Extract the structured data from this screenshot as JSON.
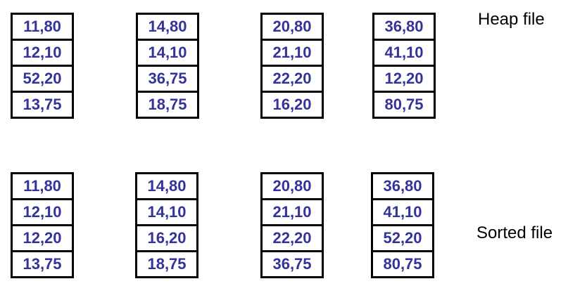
{
  "heap": {
    "label": "Heap file",
    "pages": [
      [
        "11,80",
        "12,10",
        "52,20",
        "13,75"
      ],
      [
        "14,80",
        "14,10",
        "36,75",
        "18,75"
      ],
      [
        "20,80",
        "21,10",
        "22,20",
        "16,20"
      ],
      [
        "36,80",
        "41,10",
        "12,20",
        "80,75"
      ]
    ]
  },
  "sorted": {
    "label": "Sorted file",
    "pages": [
      [
        "11,80",
        "12,10",
        "12,20",
        "13,75"
      ],
      [
        "14,80",
        "14,10",
        "16,20",
        "18,75"
      ],
      [
        "20,80",
        "21,10",
        "22,20",
        "36,75"
      ],
      [
        "36,80",
        "41,10",
        "52,20",
        "80,75"
      ]
    ]
  },
  "colors": {
    "record_text": "#333399",
    "border": "#000000"
  }
}
